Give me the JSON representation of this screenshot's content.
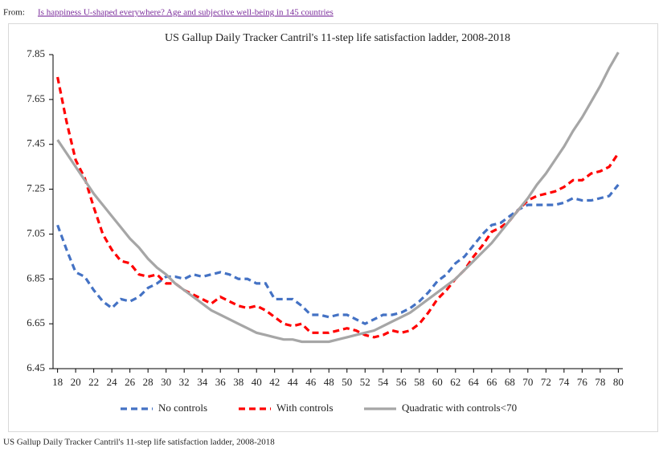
{
  "source": {
    "prefix": "From:",
    "link": "Is happiness U-shaped everywhere? Age and subjective well-being in 145 countries"
  },
  "caption": "US Gallup Daily Tracker Cantril's 11-step life satisfaction ladder, 2008-2018",
  "chart_data": {
    "type": "line",
    "title": "US Gallup Daily Tracker Cantril's 11-step life satisfaction ladder, 2008-2018",
    "x": [
      18,
      19,
      20,
      21,
      22,
      23,
      24,
      25,
      26,
      27,
      28,
      29,
      30,
      31,
      32,
      33,
      34,
      35,
      36,
      37,
      38,
      39,
      40,
      41,
      42,
      43,
      44,
      45,
      46,
      47,
      48,
      49,
      50,
      51,
      52,
      53,
      54,
      55,
      56,
      57,
      58,
      59,
      60,
      61,
      62,
      63,
      64,
      65,
      66,
      67,
      68,
      69,
      70,
      71,
      72,
      73,
      74,
      75,
      76,
      77,
      78,
      79,
      80
    ],
    "series": [
      {
        "name": "No controls",
        "color": "#4472c4",
        "dash": true,
        "values": [
          7.09,
          6.98,
          6.88,
          6.86,
          6.8,
          6.75,
          6.72,
          6.76,
          6.75,
          6.77,
          6.81,
          6.83,
          6.86,
          6.86,
          6.85,
          6.87,
          6.86,
          6.87,
          6.88,
          6.87,
          6.85,
          6.85,
          6.83,
          6.83,
          6.76,
          6.76,
          6.76,
          6.73,
          6.69,
          6.69,
          6.68,
          6.69,
          6.69,
          6.67,
          6.65,
          6.67,
          6.69,
          6.69,
          6.7,
          6.72,
          6.75,
          6.79,
          6.84,
          6.87,
          6.92,
          6.95,
          7.0,
          7.05,
          7.09,
          7.1,
          7.13,
          7.16,
          7.18,
          7.18,
          7.18,
          7.18,
          7.19,
          7.21,
          7.2,
          7.2,
          7.21,
          7.22,
          7.27
        ]
      },
      {
        "name": "With controls",
        "color": "#ff0000",
        "dash": true,
        "values": [
          7.75,
          7.55,
          7.38,
          7.3,
          7.17,
          7.05,
          6.98,
          6.93,
          6.92,
          6.87,
          6.86,
          6.87,
          6.83,
          6.83,
          6.8,
          6.78,
          6.76,
          6.74,
          6.77,
          6.75,
          6.73,
          6.72,
          6.73,
          6.71,
          6.68,
          6.65,
          6.64,
          6.65,
          6.61,
          6.61,
          6.61,
          6.62,
          6.63,
          6.62,
          6.6,
          6.59,
          6.6,
          6.62,
          6.61,
          6.62,
          6.65,
          6.7,
          6.76,
          6.8,
          6.85,
          6.89,
          6.95,
          7.0,
          7.06,
          7.08,
          7.11,
          7.16,
          7.2,
          7.22,
          7.23,
          7.24,
          7.26,
          7.29,
          7.29,
          7.32,
          7.33,
          7.35,
          7.41
        ]
      },
      {
        "name": "Quadratic with controls<70",
        "color": "#a6a6a6",
        "dash": false,
        "values": [
          7.47,
          7.41,
          7.35,
          7.29,
          7.23,
          7.18,
          7.13,
          7.08,
          7.03,
          6.99,
          6.94,
          6.9,
          6.87,
          6.83,
          6.8,
          6.77,
          6.74,
          6.71,
          6.69,
          6.67,
          6.65,
          6.63,
          6.61,
          6.6,
          6.59,
          6.58,
          6.58,
          6.57,
          6.57,
          6.57,
          6.57,
          6.58,
          6.59,
          6.6,
          6.61,
          6.62,
          6.64,
          6.66,
          6.68,
          6.7,
          6.73,
          6.76,
          6.79,
          6.82,
          6.85,
          6.89,
          6.93,
          6.97,
          7.01,
          7.06,
          7.11,
          7.16,
          7.21,
          7.27,
          7.32,
          7.38,
          7.44,
          7.51,
          7.57,
          7.64,
          7.71,
          7.79,
          7.86
        ]
      }
    ],
    "xlim": [
      17.5,
      80.5
    ],
    "xticks": [
      18,
      20,
      22,
      24,
      26,
      28,
      30,
      32,
      34,
      36,
      38,
      40,
      42,
      44,
      46,
      48,
      50,
      52,
      54,
      56,
      58,
      60,
      62,
      64,
      66,
      68,
      70,
      72,
      74,
      76,
      78,
      80
    ],
    "ylim": [
      6.45,
      7.85
    ],
    "yticks": [
      6.45,
      6.65,
      6.85,
      7.05,
      7.25,
      7.45,
      7.65,
      7.85
    ],
    "grid": false,
    "legend": "bottom"
  }
}
